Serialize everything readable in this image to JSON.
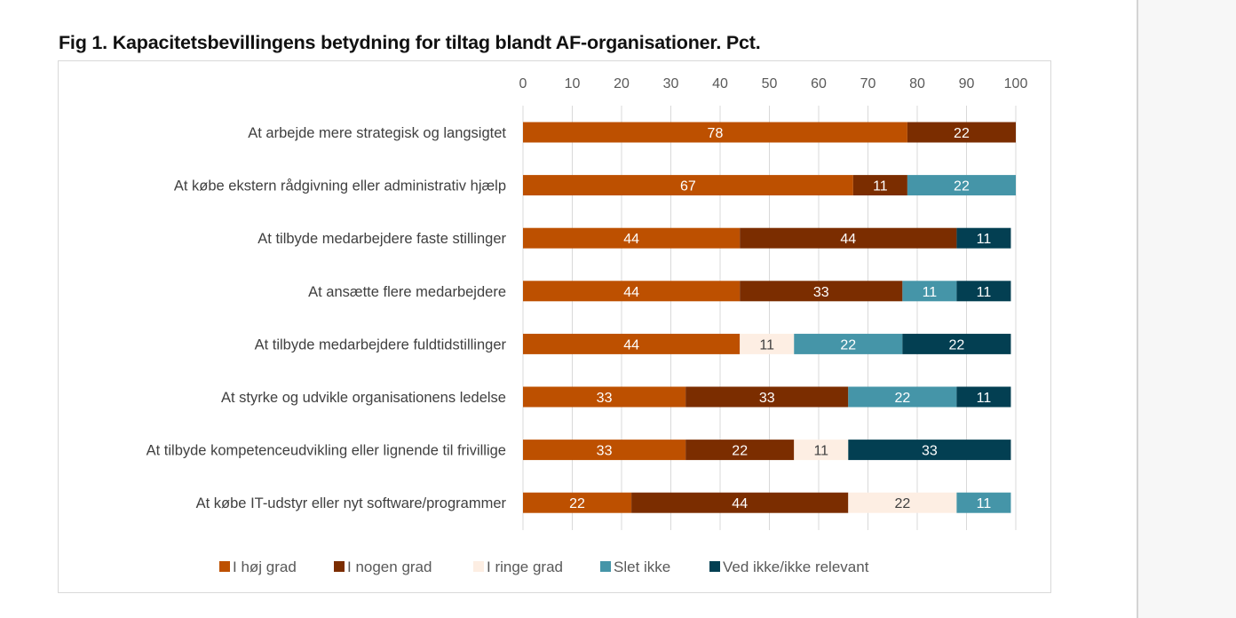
{
  "chart_data": {
    "type": "bar",
    "orientation": "horizontal",
    "stacked": true,
    "title": "Fig 1. Kapacitetsbevillingens betydning for tiltag blandt AF-organisationer. Pct.",
    "xlabel": "",
    "ylabel": "",
    "xlim": [
      0,
      100
    ],
    "x_ticks": [
      0,
      10,
      20,
      30,
      40,
      50,
      60,
      70,
      80,
      90,
      100
    ],
    "x_axis_position": "top",
    "grid": true,
    "legend_position": "bottom",
    "categories": [
      "At arbejde mere strategisk og langsigtet",
      "At købe ekstern rådgivning eller administrativ hjælp",
      "At tilbyde medarbejdere faste stillinger",
      "At ansætte flere medarbejdere",
      "At tilbyde medarbejdere fuldtidstillinger",
      "At styrke og udvikle organisationens ledelse",
      "At tilbyde kompetenceudvikling eller lignende til frivillige",
      "At købe IT-udstyr eller nyt software/programmer"
    ],
    "series": [
      {
        "name": "I høj grad",
        "color": "#bd5000",
        "label_color": "#ffffff",
        "values": [
          78,
          67,
          44,
          44,
          44,
          33,
          33,
          22
        ]
      },
      {
        "name": "I nogen grad",
        "color": "#7b2d00",
        "label_color": "#ffffff",
        "values": [
          22,
          11,
          44,
          33,
          0,
          33,
          22,
          44
        ]
      },
      {
        "name": "I ringe grad",
        "color": "#fdeee3",
        "label_color": "#404040",
        "values": [
          0,
          0,
          0,
          0,
          11,
          0,
          11,
          22
        ]
      },
      {
        "name": "Slet ikke",
        "color": "#4595a8",
        "label_color": "#ffffff",
        "values": [
          0,
          22,
          0,
          11,
          22,
          22,
          0,
          11
        ]
      },
      {
        "name": "Ved ikke/ikke relevant",
        "color": "#033f52",
        "label_color": "#ffffff",
        "values": [
          0,
          0,
          11,
          11,
          22,
          11,
          33,
          0
        ]
      }
    ]
  }
}
